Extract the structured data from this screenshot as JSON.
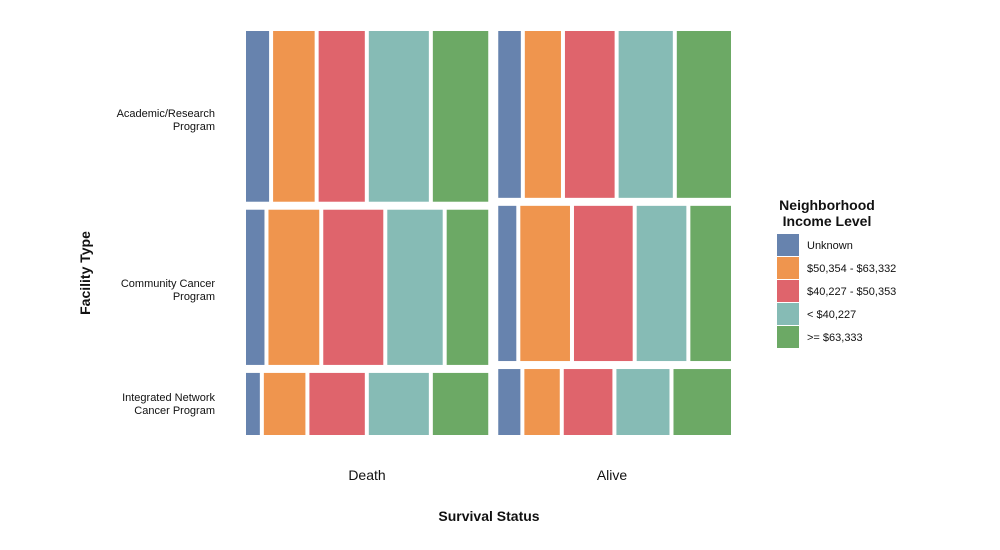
{
  "chart_data": {
    "type": "mosaic",
    "xlabel": "Survival Status",
    "ylabel": "Facility Type",
    "x_categories": [
      "Death",
      "Alive"
    ],
    "x_proportions": [
      0.51,
      0.49
    ],
    "y_categories": [
      {
        "line1": "Academic/Research",
        "line2": "Program"
      },
      {
        "line1": "Community Cancer",
        "line2": "Program"
      },
      {
        "line1": "Integrated Network",
        "line2": "Cancer Program"
      }
    ],
    "legend": {
      "title_line1": "Neighborhood",
      "title_line2": "Income Level",
      "placement": "right",
      "items": [
        {
          "label": "Unknown",
          "color": "#6783ae"
        },
        {
          "label": "$50,354 - $63,332",
          "color": "#ef954e"
        },
        {
          "label": "$40,227 - $50,353",
          "color": "#df646c"
        },
        {
          "label": "< $40,227",
          "color": "#86bbb5"
        },
        {
          "label": ">= $63,333",
          "color": "#6ca965"
        }
      ]
    },
    "columns": [
      {
        "name": "Death",
        "facility_shares": [
          0.44,
          0.4,
          0.16
        ],
        "income_shares": [
          [
            0.05,
            0.09,
            0.1,
            0.13,
            0.12
          ],
          [
            0.04,
            0.11,
            0.13,
            0.12,
            0.09
          ],
          [
            0.03,
            0.09,
            0.12,
            0.13,
            0.12
          ]
        ]
      },
      {
        "name": "Alive",
        "facility_shares": [
          0.43,
          0.4,
          0.17
        ],
        "income_shares": [
          [
            0.05,
            0.08,
            0.11,
            0.12,
            0.12
          ],
          [
            0.04,
            0.11,
            0.13,
            0.11,
            0.09
          ],
          [
            0.05,
            0.08,
            0.11,
            0.12,
            0.13
          ]
        ]
      }
    ]
  }
}
